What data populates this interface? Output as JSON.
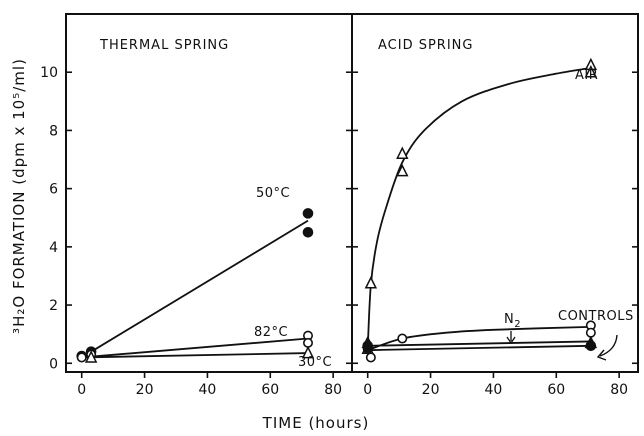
{
  "chart_data": [
    {
      "type": "line",
      "title": "THERMAL SPRING",
      "xlabel": "TIME (hours)",
      "ylabel": "³H₂O FORMATION (dpm x 10⁵/ml)",
      "xlim": [
        -5,
        86
      ],
      "ylim": [
        -0.3,
        12
      ],
      "xticks": [
        0,
        20,
        40,
        60,
        80
      ],
      "yticks": [
        0,
        2,
        4,
        6,
        8,
        10
      ],
      "series": [
        {
          "name": "50°C",
          "marker": "filled-circle",
          "points": [
            [
              0,
              0.25
            ],
            [
              3,
              0.4
            ],
            [
              72,
              5.15
            ],
            [
              72,
              4.5
            ]
          ],
          "line": [
            [
              0,
              0.2
            ],
            [
              72,
              4.9
            ]
          ]
        },
        {
          "name": "82°C",
          "marker": "open-circle",
          "points": [
            [
              0,
              0.2
            ],
            [
              3,
              0.3
            ],
            [
              72,
              0.95
            ],
            [
              72,
              0.7
            ]
          ],
          "line": [
            [
              0,
              0.2
            ],
            [
              72,
              0.85
            ]
          ]
        },
        {
          "name": "30°C",
          "marker": "open-triangle",
          "points": [
            [
              3,
              0.2
            ],
            [
              72,
              0.35
            ]
          ],
          "line": [
            [
              0,
              0.2
            ],
            [
              72,
              0.35
            ]
          ]
        }
      ]
    },
    {
      "type": "line",
      "title": "ACID SPRING",
      "xlabel": "TIME (hours)",
      "xlim": [
        -5,
        86
      ],
      "ylim": [
        -0.3,
        12
      ],
      "xticks": [
        0,
        20,
        40,
        60,
        80
      ],
      "annotations": [
        "AIR",
        "N2",
        "CONTROLS"
      ],
      "series": [
        {
          "name": "AIR",
          "marker": "open-triangle",
          "points": [
            [
              0,
              0.5
            ],
            [
              1,
              2.75
            ],
            [
              11,
              7.2
            ],
            [
              11,
              6.6
            ],
            [
              71,
              10.25
            ],
            [
              71,
              10.0
            ]
          ],
          "curve": [
            [
              0,
              0.5
            ],
            [
              1,
              2.7
            ],
            [
              3,
              4.2
            ],
            [
              6,
              5.4
            ],
            [
              11,
              6.9
            ],
            [
              18,
              8.0
            ],
            [
              30,
              9.0
            ],
            [
              45,
              9.6
            ],
            [
              60,
              9.95
            ],
            [
              71,
              10.15
            ]
          ]
        },
        {
          "name": "N2",
          "marker": "open-circle",
          "points": [
            [
              0,
              0.5
            ],
            [
              1,
              0.2
            ],
            [
              11,
              0.85
            ],
            [
              71,
              1.3
            ],
            [
              71,
              1.05
            ]
          ],
          "curve": [
            [
              0,
              0.45
            ],
            [
              11,
              0.85
            ],
            [
              25,
              1.05
            ],
            [
              40,
              1.15
            ],
            [
              71,
              1.25
            ]
          ]
        },
        {
          "name": "CONTROLS (open)",
          "marker": "open-circle",
          "points": [
            [
              0,
              0.55
            ]
          ],
          "line": [
            [
              0,
              0.6
            ],
            [
              71,
              0.75
            ]
          ]
        },
        {
          "name": "CONTROLS (filled)",
          "marker": "filled-circle",
          "points": [
            [
              0,
              0.6
            ],
            [
              71,
              0.6
            ]
          ],
          "line": [
            [
              0,
              0.45
            ],
            [
              71,
              0.6
            ]
          ]
        },
        {
          "name": "CONTROLS (triangle)",
          "marker": "filled-triangle",
          "points": [
            [
              0,
              0.7
            ],
            [
              71,
              0.7
            ]
          ]
        }
      ]
    }
  ]
}
